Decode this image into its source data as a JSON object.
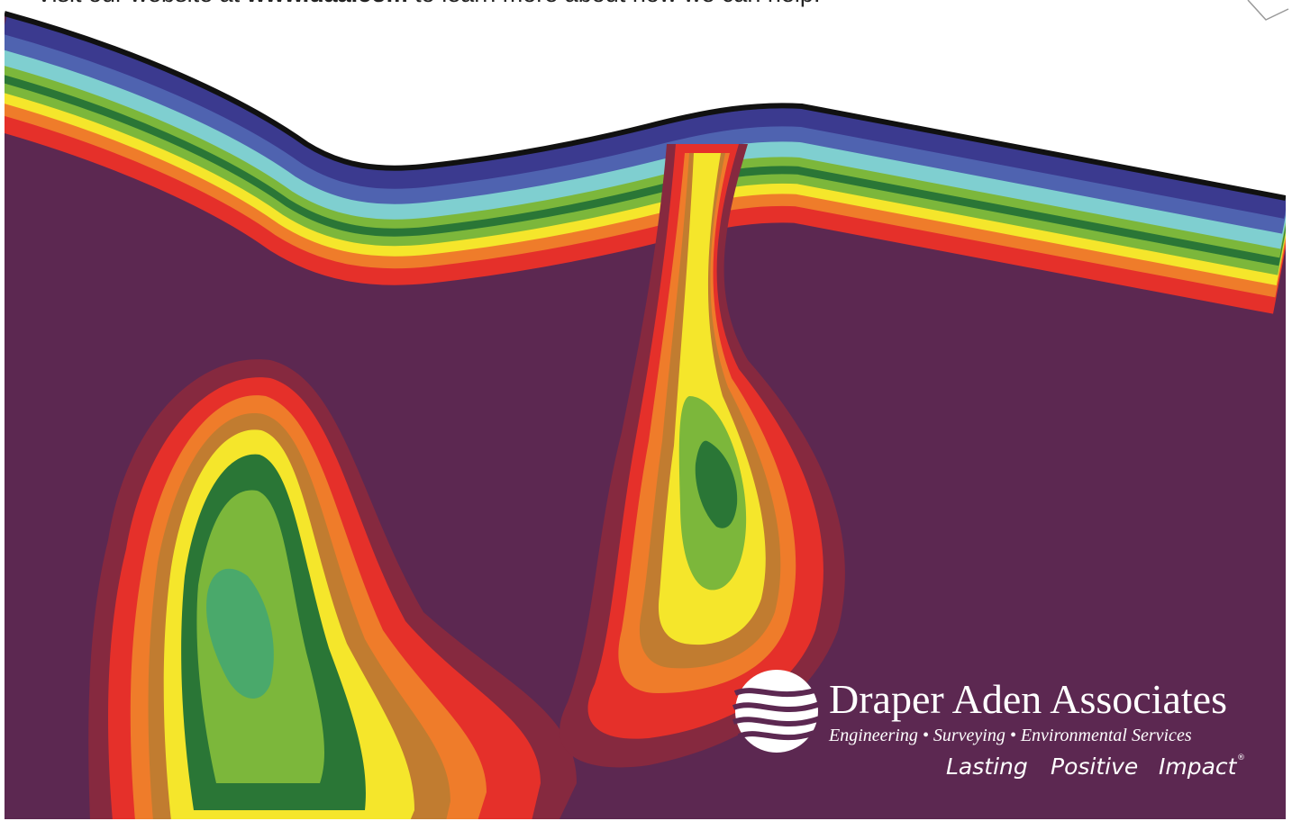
{
  "header": {
    "text_prefix": "Visit our website at ",
    "link": "www.daa.com",
    "text_suffix": " to learn more about how we can help."
  },
  "logo": {
    "name": "Draper Aden Associates",
    "services": "Engineering • Surveying • Environmental Services",
    "tagline": [
      "Lasting",
      "Positive",
      "Impact"
    ],
    "trademark": "®"
  }
}
